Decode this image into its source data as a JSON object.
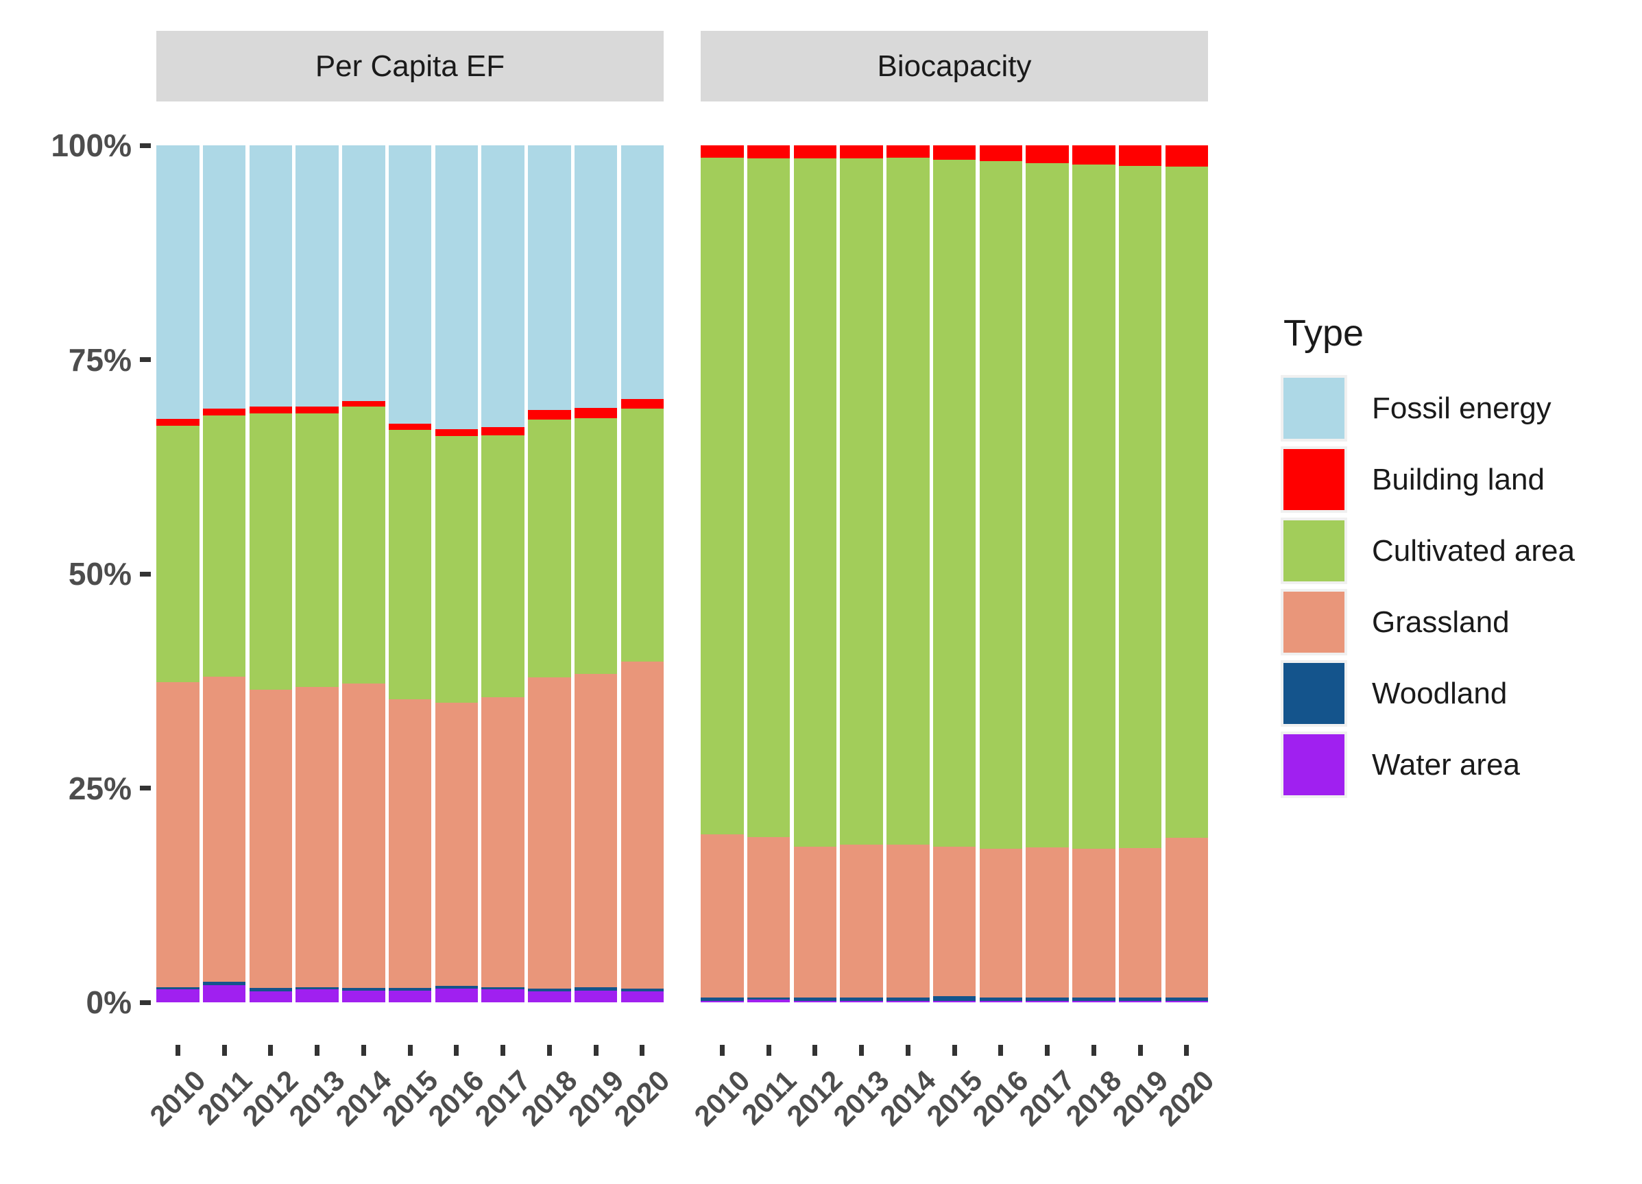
{
  "figure": {
    "y_axis": {
      "tick_labels": [
        "0%",
        "25%",
        "50%",
        "75%",
        "100%"
      ],
      "tick_values": [
        0,
        25,
        50,
        75,
        100
      ]
    },
    "x_axis": {
      "tick_labels": [
        "2010",
        "2011",
        "2012",
        "2013",
        "2014",
        "2015",
        "2016",
        "2017",
        "2018",
        "2019",
        "2020"
      ]
    },
    "legend": {
      "title": "Type",
      "entries": [
        {
          "label": "Fossil energy",
          "color": "#ADD8E6"
        },
        {
          "label": "Building land",
          "color": "#FF0000"
        },
        {
          "label": "Cultivated area",
          "color": "#A2CD5A"
        },
        {
          "label": "Grassland",
          "color": "#E9967A"
        },
        {
          "label": "Woodland",
          "color": "#14548C"
        },
        {
          "label": "Water area",
          "color": "#A020F0"
        }
      ]
    }
  },
  "chart_data": {
    "type": "bar",
    "subtype": "stacked-percent",
    "grid": false,
    "legend_position": "right",
    "ylim": [
      0,
      100
    ],
    "categories": [
      "2010",
      "2011",
      "2012",
      "2013",
      "2014",
      "2015",
      "2016",
      "2017",
      "2018",
      "2019",
      "2020"
    ],
    "stack_order_bottom_to_top": [
      "Water area",
      "Woodland",
      "Grassland",
      "Cultivated area",
      "Building land",
      "Fossil energy"
    ],
    "facets": [
      {
        "label": "Per Capita EF",
        "series": [
          {
            "name": "Fossil energy",
            "color": "#ADD8E6",
            "values": [
              31.9,
              30.7,
              30.5,
              30.5,
              29.8,
              32.5,
              33.1,
              32.9,
              30.9,
              30.6,
              29.6
            ]
          },
          {
            "name": "Building land",
            "color": "#FF0000",
            "values": [
              0.8,
              0.8,
              0.8,
              0.8,
              0.7,
              0.7,
              0.8,
              0.9,
              1.1,
              1.2,
              1.1
            ]
          },
          {
            "name": "Cultivated area",
            "color": "#A2CD5A",
            "values": [
              29.9,
              30.5,
              32.2,
              31.9,
              32.3,
              31.4,
              31.1,
              30.6,
              30.1,
              29.9,
              29.5
            ]
          },
          {
            "name": "Grassland",
            "color": "#E9967A",
            "values": [
              35.6,
              35.6,
              34.8,
              35.0,
              35.5,
              33.7,
              33.1,
              33.8,
              36.3,
              36.5,
              38.2
            ]
          },
          {
            "name": "Woodland",
            "color": "#14548C",
            "values": [
              0.3,
              0.4,
              0.4,
              0.3,
              0.3,
              0.3,
              0.3,
              0.3,
              0.3,
              0.4,
              0.3
            ]
          },
          {
            "name": "Water area",
            "color": "#A020F0",
            "values": [
              1.5,
              2.0,
              1.3,
              1.5,
              1.4,
              1.4,
              1.6,
              1.5,
              1.3,
              1.4,
              1.3
            ]
          }
        ]
      },
      {
        "label": "Biocapacity",
        "series": [
          {
            "name": "Fossil energy",
            "color": "#ADD8E6",
            "values": [
              0,
              0,
              0,
              0,
              0,
              0,
              0,
              0,
              0,
              0,
              0
            ]
          },
          {
            "name": "Building land",
            "color": "#FF0000",
            "values": [
              1.4,
              1.5,
              1.5,
              1.5,
              1.4,
              1.7,
              1.8,
              2.1,
              2.2,
              2.4,
              2.5
            ]
          },
          {
            "name": "Cultivated area",
            "color": "#A2CD5A",
            "values": [
              79.0,
              79.2,
              80.3,
              80.1,
              80.2,
              80.1,
              80.3,
              79.8,
              79.9,
              79.6,
              78.3
            ]
          },
          {
            "name": "Grassland",
            "color": "#E9967A",
            "values": [
              19.0,
              18.7,
              17.6,
              17.8,
              17.8,
              17.5,
              17.3,
              17.5,
              17.3,
              17.4,
              18.6
            ]
          },
          {
            "name": "Woodland",
            "color": "#14548C",
            "values": [
              0.4,
              0.3,
              0.4,
              0.4,
              0.4,
              0.5,
              0.4,
              0.4,
              0.4,
              0.4,
              0.4
            ]
          },
          {
            "name": "Water area",
            "color": "#A020F0",
            "values": [
              0.2,
              0.3,
              0.2,
              0.2,
              0.2,
              0.2,
              0.2,
              0.2,
              0.2,
              0.2,
              0.2
            ]
          }
        ]
      }
    ]
  }
}
